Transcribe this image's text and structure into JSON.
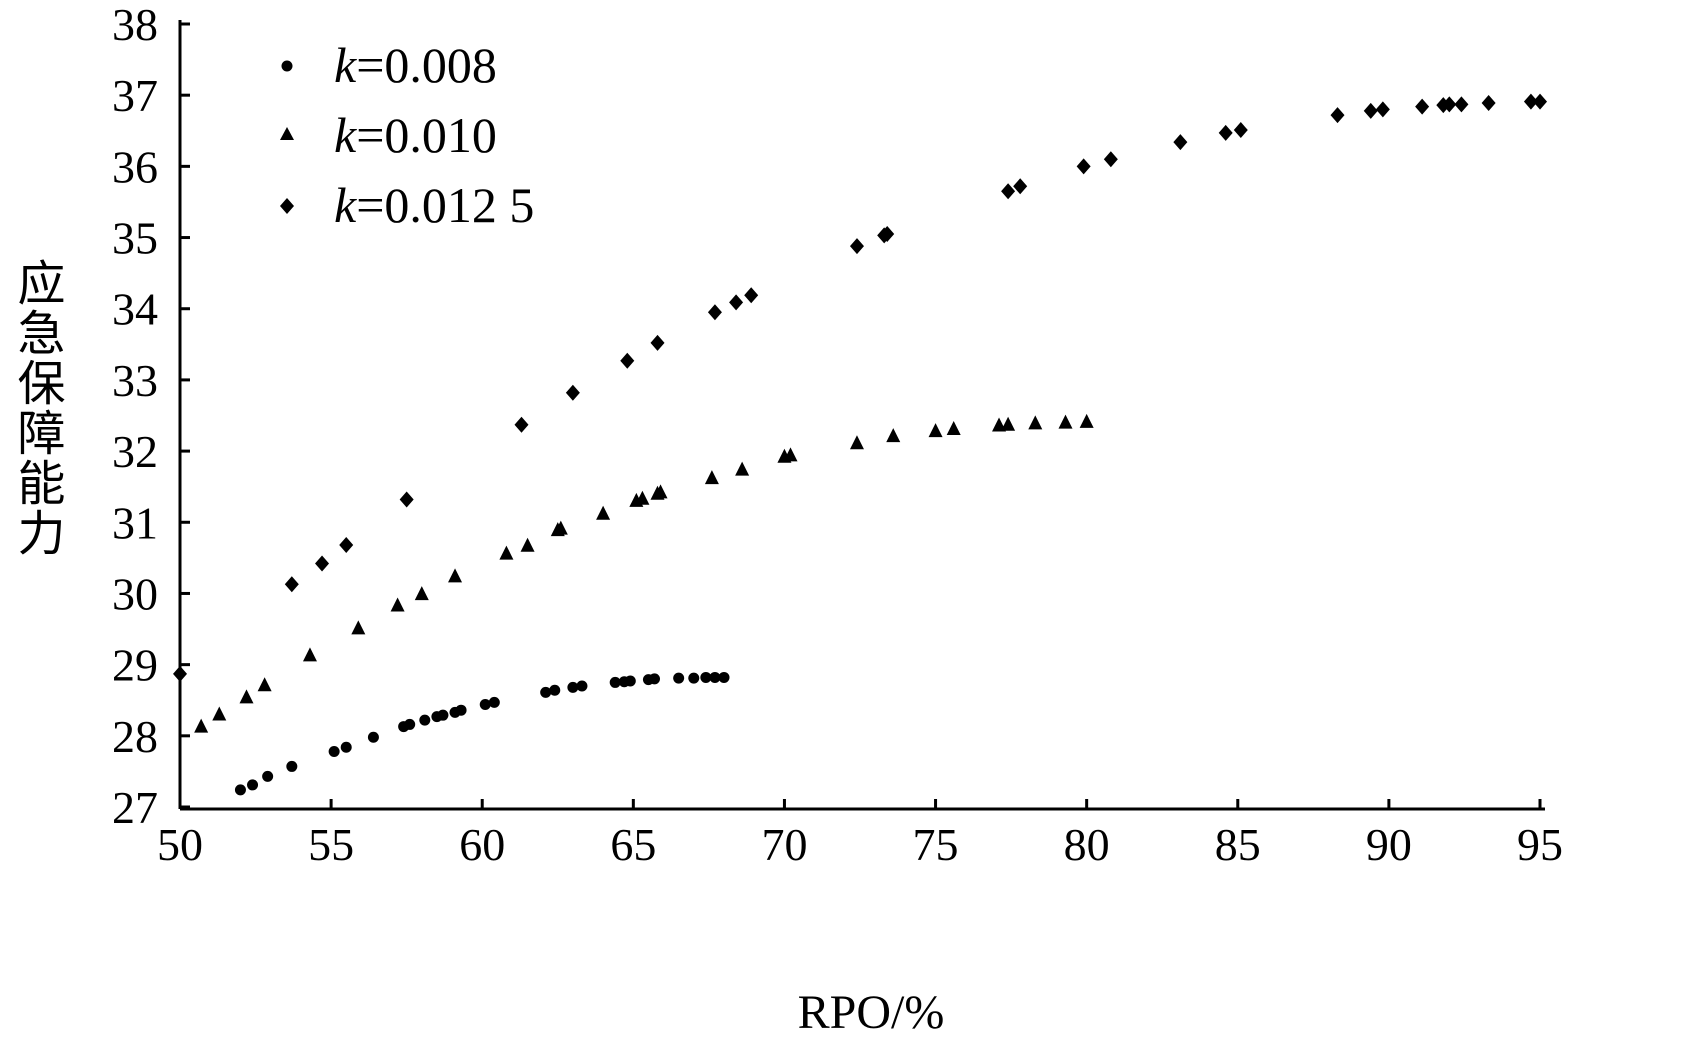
{
  "chart_data": {
    "type": "scatter",
    "title": "",
    "xlabel": "RPO/%",
    "ylabel": "应急保障能力",
    "xlim": [
      50,
      95
    ],
    "ylim": [
      27,
      38
    ],
    "xticks": [
      50,
      55,
      60,
      65,
      70,
      75,
      80,
      85,
      90,
      95
    ],
    "yticks": [
      27,
      28,
      29,
      30,
      31,
      32,
      33,
      34,
      35,
      36,
      37,
      38
    ],
    "grid": false,
    "legend_position": "top-left",
    "series": [
      {
        "name": "k=0.008",
        "name_italic": "k",
        "name_rest": "=0.008",
        "marker": "circle",
        "color": "#000000",
        "x": [
          52.0,
          52.4,
          52.9,
          53.7,
          55.1,
          55.5,
          56.4,
          57.4,
          57.6,
          58.1,
          58.5,
          58.7,
          59.1,
          59.3,
          60.1,
          60.4,
          62.1,
          62.4,
          63.0,
          63.3,
          64.4,
          64.7,
          64.9,
          65.5,
          65.7,
          66.5,
          67.0,
          67.4,
          67.7,
          68.0
        ],
        "y": [
          27.24,
          27.31,
          27.43,
          27.57,
          27.78,
          27.84,
          27.98,
          28.13,
          28.16,
          28.22,
          28.27,
          28.29,
          28.33,
          28.36,
          28.44,
          28.47,
          28.61,
          28.64,
          28.68,
          28.7,
          28.75,
          28.76,
          28.77,
          28.79,
          28.8,
          28.81,
          28.81,
          28.82,
          28.82,
          28.82
        ]
      },
      {
        "name": "k=0.010",
        "name_italic": "k",
        "name_rest": "=0.010",
        "marker": "triangle",
        "color": "#000000",
        "x": [
          50.7,
          51.3,
          52.2,
          52.8,
          54.3,
          55.9,
          57.2,
          58.0,
          59.1,
          60.8,
          61.5,
          62.5,
          62.6,
          64.0,
          65.1,
          65.3,
          65.8,
          65.9,
          67.6,
          68.6,
          70.0,
          70.2,
          72.4,
          73.6,
          75.0,
          75.6,
          77.1,
          77.4,
          78.3,
          79.3,
          80.0
        ],
        "y": [
          28.13,
          28.3,
          28.54,
          28.71,
          29.13,
          29.51,
          29.83,
          29.99,
          30.24,
          30.56,
          30.67,
          30.89,
          30.91,
          31.12,
          31.3,
          31.33,
          31.4,
          31.42,
          31.62,
          31.74,
          31.92,
          31.94,
          32.11,
          32.21,
          32.28,
          32.31,
          32.36,
          32.37,
          32.39,
          32.4,
          32.41
        ]
      },
      {
        "name": "k=0.012 5",
        "name_italic": "k",
        "name_rest": "=0.012 5",
        "marker": "diamond",
        "color": "#000000",
        "x": [
          50.0,
          53.7,
          54.7,
          55.5,
          57.5,
          61.3,
          63.0,
          64.8,
          65.8,
          67.7,
          68.4,
          68.9,
          72.4,
          73.3,
          73.4,
          77.4,
          77.8,
          79.9,
          80.8,
          83.1,
          84.6,
          85.1,
          88.3,
          89.4,
          89.8,
          91.1,
          91.8,
          92.0,
          92.4,
          93.3,
          94.7,
          95.0
        ],
        "y": [
          28.87,
          30.13,
          30.42,
          30.68,
          31.32,
          32.37,
          32.82,
          33.27,
          33.52,
          33.95,
          34.09,
          34.19,
          34.88,
          35.03,
          35.05,
          35.65,
          35.72,
          36.0,
          36.1,
          36.34,
          36.47,
          36.51,
          36.72,
          36.78,
          36.8,
          36.84,
          36.86,
          36.87,
          36.87,
          36.89,
          36.91,
          36.91
        ]
      }
    ]
  }
}
